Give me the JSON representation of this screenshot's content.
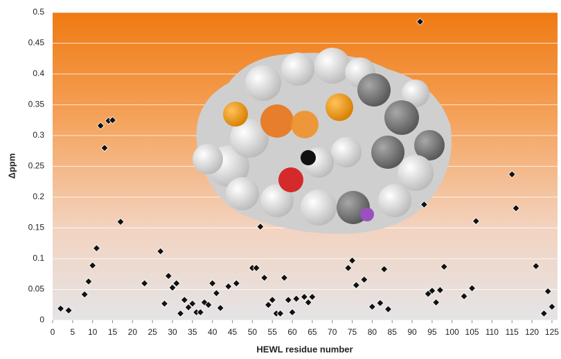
{
  "chart_data": {
    "type": "scatter",
    "x_label": "HEWL residue number",
    "y_label": "Δppm",
    "xlim": [
      0,
      126.4
    ],
    "ylim": [
      0,
      0.5
    ],
    "xticks": [
      0,
      5,
      10,
      15,
      20,
      25,
      30,
      35,
      40,
      45,
      50,
      55,
      60,
      65,
      70,
      75,
      80,
      85,
      90,
      95,
      100,
      105,
      110,
      115,
      120,
      125
    ],
    "yticks": [
      0,
      0.05,
      0.1,
      0.15,
      0.2,
      0.25,
      0.3,
      0.35,
      0.4,
      0.45,
      0.5
    ],
    "grid": true,
    "color": "#111111",
    "x": [
      2,
      4,
      8,
      9,
      10,
      11,
      12,
      13,
      14,
      15,
      17,
      23,
      27,
      28,
      29,
      30,
      31,
      32,
      33,
      34,
      35,
      36,
      37,
      38,
      39,
      40,
      41,
      42,
      44,
      46,
      50,
      51,
      52,
      53,
      54,
      55,
      56,
      57,
      58,
      59,
      60,
      61,
      63,
      64,
      65,
      74,
      75,
      76,
      78,
      80,
      82,
      83,
      84,
      92,
      93,
      94,
      95,
      96,
      97,
      98,
      103,
      105,
      106,
      115,
      116,
      121,
      123,
      124,
      125
    ],
    "values": [
      0.019,
      0.016,
      0.042,
      0.063,
      0.089,
      0.117,
      0.316,
      0.28,
      0.324,
      0.325,
      0.16,
      0.06,
      0.112,
      0.027,
      0.072,
      0.053,
      0.06,
      0.011,
      0.033,
      0.021,
      0.027,
      0.013,
      0.013,
      0.029,
      0.025,
      0.06,
      0.044,
      0.02,
      0.055,
      0.06,
      0.085,
      0.085,
      0.152,
      0.069,
      0.025,
      0.033,
      0.011,
      0.011,
      0.069,
      0.033,
      0.013,
      0.035,
      0.038,
      0.029,
      0.038,
      0.085,
      0.097,
      0.057,
      0.066,
      0.022,
      0.028,
      0.083,
      0.018,
      0.485,
      0.188,
      0.043,
      0.048,
      0.029,
      0.049,
      0.087,
      0.039,
      0.052,
      0.161,
      0.237,
      0.182,
      0.088,
      0.011,
      0.047,
      0.022
    ]
  }
}
